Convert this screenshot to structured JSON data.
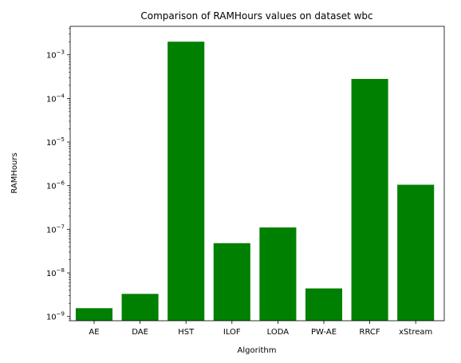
{
  "chart_data": {
    "type": "bar",
    "title": "Comparison of RAMHours values on dataset wbc",
    "xlabel": "Algorithm",
    "ylabel": "RAMHours",
    "yscale": "log",
    "ylim": [
      8e-10,
      0.0045
    ],
    "categories": [
      "AE",
      "DAE",
      "HST",
      "ILOF",
      "LODA",
      "PW-AE",
      "RRCF",
      "xStream"
    ],
    "values": [
      1.55e-09,
      3.3e-09,
      0.002,
      4.8e-08,
      1.1e-07,
      4.4e-09,
      0.00028,
      1.05e-06
    ],
    "y_ticks": [
      {
        "exp": -9,
        "label": "10",
        "sup": "−9"
      },
      {
        "exp": -8,
        "label": "10",
        "sup": "−8"
      },
      {
        "exp": -7,
        "label": "10",
        "sup": "−7"
      },
      {
        "exp": -6,
        "label": "10",
        "sup": "−6"
      },
      {
        "exp": -5,
        "label": "10",
        "sup": "−5"
      },
      {
        "exp": -4,
        "label": "10",
        "sup": "−4"
      },
      {
        "exp": -3,
        "label": "10",
        "sup": "−3"
      }
    ],
    "bar_color": "#008000",
    "grid": false,
    "legend": "none"
  }
}
